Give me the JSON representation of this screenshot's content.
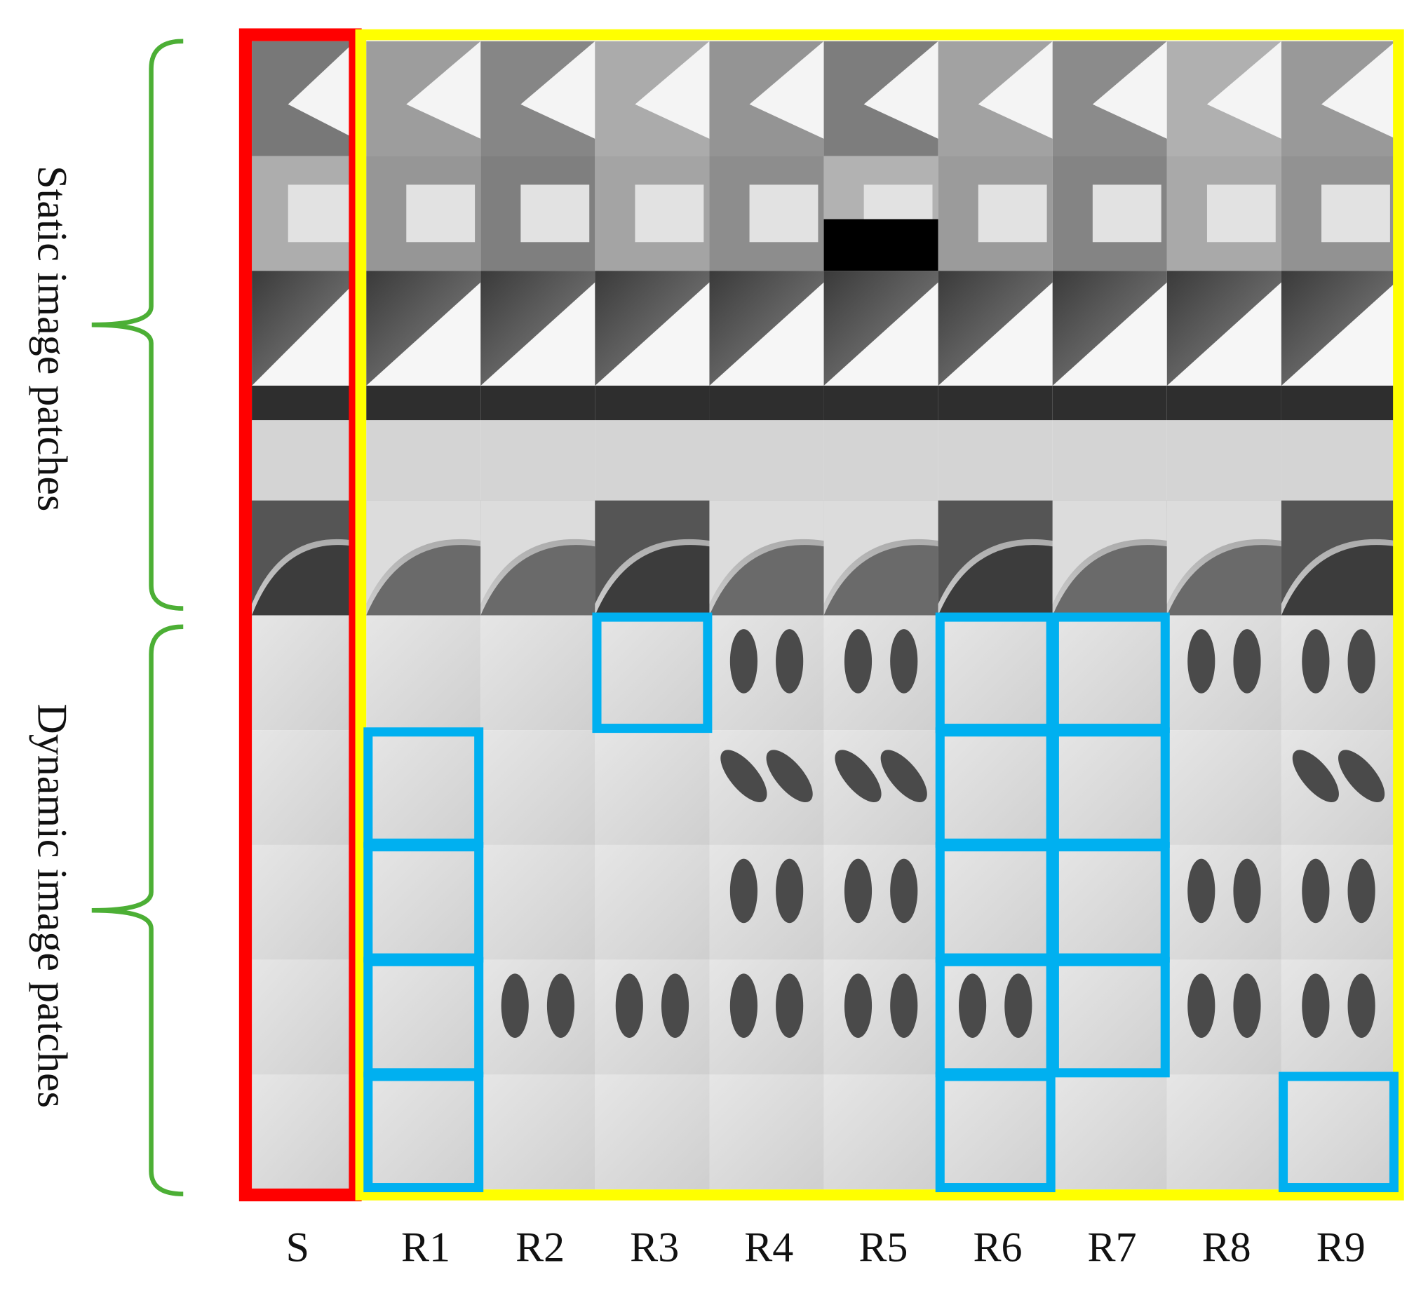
{
  "row_groups": [
    {
      "label": "Static image patches"
    },
    {
      "label": "Dynamic image patches"
    }
  ],
  "columns": [
    "S",
    "R1",
    "R2",
    "R3",
    "R4",
    "R5",
    "R6",
    "R7",
    "R8",
    "R9"
  ]
}
